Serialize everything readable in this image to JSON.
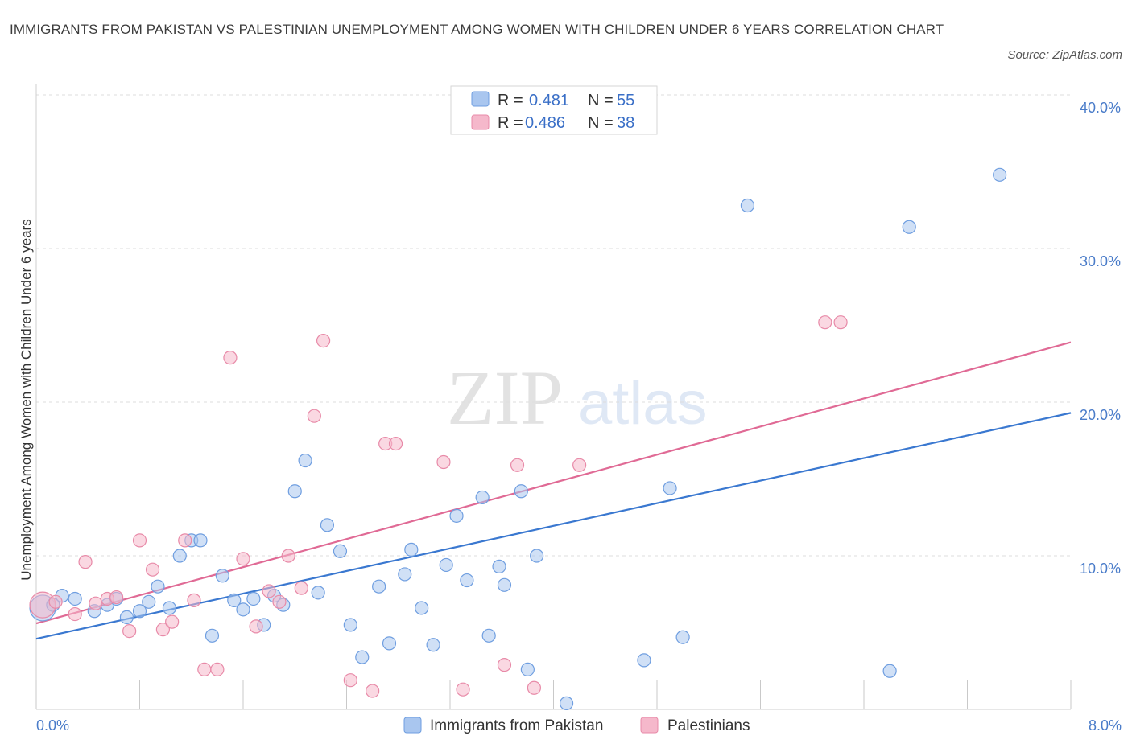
{
  "title": "IMMIGRANTS FROM PAKISTAN VS PALESTINIAN UNEMPLOYMENT AMONG WOMEN WITH CHILDREN UNDER 6 YEARS CORRELATION CHART",
  "source": "Source: ZipAtlas.com",
  "watermark": {
    "zip": "ZIP",
    "atlas": "atlas"
  },
  "colors": {
    "blue_fill": "#a9c6ef",
    "blue_stroke": "#6f9ee0",
    "blue_line": "#3a78d0",
    "pink_fill": "#f5b8cb",
    "pink_stroke": "#e88aa8",
    "pink_line": "#e06a95",
    "tick": "#4a7cc9",
    "grid": "#dddddd"
  },
  "legend": {
    "rows": [
      {
        "r_label": "R =",
        "r_value": "0.481",
        "n_label": "N =",
        "n_value": "55"
      },
      {
        "r_label": "R =",
        "r_value": "0.486",
        "n_label": "N =",
        "n_value": "38"
      }
    ]
  },
  "chart_data": {
    "type": "scatter",
    "title": "IMMIGRANTS FROM PAKISTAN VS PALESTINIAN UNEMPLOYMENT AMONG WOMEN WITH CHILDREN UNDER 6 YEARS CORRELATION CHART",
    "xlabel": "",
    "ylabel": "Unemployment Among Women with Children Under 6 years",
    "xlim": [
      0,
      8
    ],
    "ylim": [
      0,
      40
    ],
    "x_tick_labels": [
      "0.0%",
      "8.0%"
    ],
    "y_ticks": [
      10,
      20,
      30,
      40
    ],
    "y_tick_labels": [
      "10.0%",
      "20.0%",
      "30.0%",
      "40.0%"
    ],
    "grid": true,
    "legend_position": "bottom",
    "series": [
      {
        "name": "Immigrants from Pakistan",
        "color": "#a9c6ef",
        "trend": {
          "x": [
            0,
            8
          ],
          "y": [
            4.6,
            19.3
          ]
        },
        "points": [
          {
            "x": 0.05,
            "y": 6.6,
            "big": true
          },
          {
            "x": 0.13,
            "y": 6.8
          },
          {
            "x": 0.2,
            "y": 7.4
          },
          {
            "x": 0.3,
            "y": 7.2
          },
          {
            "x": 0.45,
            "y": 6.4
          },
          {
            "x": 0.55,
            "y": 6.8
          },
          {
            "x": 0.62,
            "y": 7.2
          },
          {
            "x": 0.7,
            "y": 6.0
          },
          {
            "x": 0.8,
            "y": 6.4
          },
          {
            "x": 0.87,
            "y": 7.0
          },
          {
            "x": 0.94,
            "y": 8.0
          },
          {
            "x": 1.03,
            "y": 6.6
          },
          {
            "x": 1.11,
            "y": 10.0
          },
          {
            "x": 1.2,
            "y": 11.0
          },
          {
            "x": 1.27,
            "y": 11.0
          },
          {
            "x": 1.36,
            "y": 4.8
          },
          {
            "x": 1.44,
            "y": 8.7
          },
          {
            "x": 1.53,
            "y": 7.1
          },
          {
            "x": 1.6,
            "y": 6.5
          },
          {
            "x": 1.68,
            "y": 7.2
          },
          {
            "x": 1.76,
            "y": 5.5
          },
          {
            "x": 1.84,
            "y": 7.4
          },
          {
            "x": 1.91,
            "y": 6.8
          },
          {
            "x": 2.0,
            "y": 14.2
          },
          {
            "x": 2.08,
            "y": 16.2
          },
          {
            "x": 2.18,
            "y": 7.6
          },
          {
            "x": 2.25,
            "y": 12.0
          },
          {
            "x": 2.35,
            "y": 10.3
          },
          {
            "x": 2.43,
            "y": 5.5
          },
          {
            "x": 2.52,
            "y": 3.4
          },
          {
            "x": 2.65,
            "y": 8.0
          },
          {
            "x": 2.73,
            "y": 4.3
          },
          {
            "x": 2.85,
            "y": 8.8
          },
          {
            "x": 2.9,
            "y": 10.4
          },
          {
            "x": 2.98,
            "y": 6.6
          },
          {
            "x": 3.07,
            "y": 4.2
          },
          {
            "x": 3.17,
            "y": 9.4
          },
          {
            "x": 3.25,
            "y": 12.6
          },
          {
            "x": 3.33,
            "y": 8.4
          },
          {
            "x": 3.45,
            "y": 13.8
          },
          {
            "x": 3.5,
            "y": 4.8
          },
          {
            "x": 3.58,
            "y": 9.3
          },
          {
            "x": 3.62,
            "y": 8.1
          },
          {
            "x": 3.75,
            "y": 14.2
          },
          {
            "x": 3.8,
            "y": 2.6
          },
          {
            "x": 3.87,
            "y": 10.0
          },
          {
            "x": 4.1,
            "y": 0.4
          },
          {
            "x": 4.7,
            "y": 3.2
          },
          {
            "x": 4.9,
            "y": 14.4
          },
          {
            "x": 5.0,
            "y": 4.7
          },
          {
            "x": 5.5,
            "y": 32.8
          },
          {
            "x": 6.6,
            "y": 2.5
          },
          {
            "x": 6.75,
            "y": 31.4
          },
          {
            "x": 7.45,
            "y": 34.8
          }
        ]
      },
      {
        "name": "Palestinians",
        "color": "#f5b8cb",
        "trend": {
          "x": [
            0,
            8
          ],
          "y": [
            5.6,
            23.9
          ]
        },
        "points": [
          {
            "x": 0.05,
            "y": 6.8,
            "big": true
          },
          {
            "x": 0.15,
            "y": 7.0
          },
          {
            "x": 0.3,
            "y": 6.2
          },
          {
            "x": 0.38,
            "y": 9.6
          },
          {
            "x": 0.46,
            "y": 6.9
          },
          {
            "x": 0.55,
            "y": 7.2
          },
          {
            "x": 0.62,
            "y": 7.3
          },
          {
            "x": 0.72,
            "y": 5.1
          },
          {
            "x": 0.8,
            "y": 11.0
          },
          {
            "x": 0.9,
            "y": 9.1
          },
          {
            "x": 0.98,
            "y": 5.2
          },
          {
            "x": 1.05,
            "y": 5.7
          },
          {
            "x": 1.15,
            "y": 11.0
          },
          {
            "x": 1.22,
            "y": 7.1
          },
          {
            "x": 1.3,
            "y": 2.6
          },
          {
            "x": 1.4,
            "y": 2.6
          },
          {
            "x": 1.5,
            "y": 22.9
          },
          {
            "x": 1.6,
            "y": 9.8
          },
          {
            "x": 1.7,
            "y": 5.4
          },
          {
            "x": 1.8,
            "y": 7.7
          },
          {
            "x": 1.88,
            "y": 7.0
          },
          {
            "x": 1.95,
            "y": 10.0
          },
          {
            "x": 2.05,
            "y": 7.9
          },
          {
            "x": 2.15,
            "y": 19.1
          },
          {
            "x": 2.22,
            "y": 24.0
          },
          {
            "x": 2.43,
            "y": 1.9
          },
          {
            "x": 2.6,
            "y": 1.2
          },
          {
            "x": 2.7,
            "y": 17.3
          },
          {
            "x": 2.78,
            "y": 17.3
          },
          {
            "x": 3.15,
            "y": 16.1
          },
          {
            "x": 3.3,
            "y": 1.3
          },
          {
            "x": 3.62,
            "y": 2.9
          },
          {
            "x": 3.72,
            "y": 15.9
          },
          {
            "x": 3.85,
            "y": 1.4
          },
          {
            "x": 4.2,
            "y": 15.9
          },
          {
            "x": 6.1,
            "y": 25.2
          },
          {
            "x": 6.22,
            "y": 25.2
          }
        ]
      }
    ]
  }
}
